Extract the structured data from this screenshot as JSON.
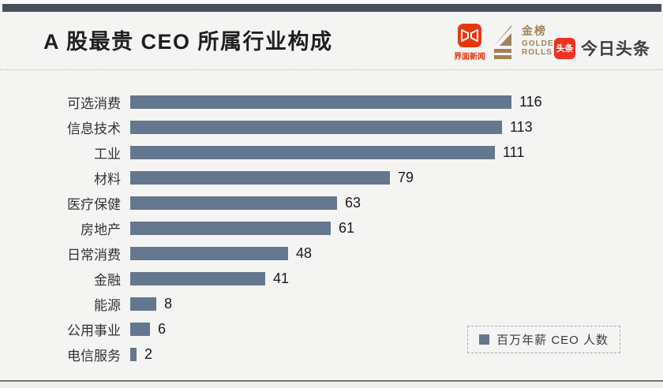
{
  "page": {
    "background": "#f4f4f3",
    "top_bar_color": "#47505a",
    "bottom_line_color": "#7c7467"
  },
  "header": {
    "title": "A 股最贵 CEO 所属行业构成",
    "logos": {
      "jiemian": {
        "name": "界面新闻",
        "label": "界面新闻",
        "brand_color": "#e8370f"
      },
      "golden_rolls": {
        "name": "金榜 GOLDEN ROLLS",
        "cn": "金榜",
        "en_line1": "GOLDEN",
        "en_line2": "ROLLS",
        "brand_color": "#a28257"
      },
      "toutiao": {
        "name": "今日头条",
        "badge": "头条",
        "label": "今日头条",
        "brand_color": "#ed3224"
      }
    }
  },
  "chart_data": {
    "type": "bar",
    "orientation": "horizontal",
    "title": "A 股最贵 CEO 所属行业构成",
    "categories": [
      "可选消费",
      "信息技术",
      "工业",
      "材料",
      "医疗保健",
      "房地产",
      "日常消费",
      "金融",
      "能源",
      "公用事业",
      "电信服务"
    ],
    "values": [
      116,
      113,
      111,
      79,
      63,
      61,
      48,
      41,
      8,
      6,
      2
    ],
    "series_name": "百万年薪 CEO 人数",
    "bar_color": "#65778e",
    "xlim": [
      0,
      116
    ],
    "grid": false,
    "legend_position": "bottom-right",
    "value_labels": true
  },
  "legend": {
    "label": "百万年薪 CEO 人数",
    "swatch_color": "#65778e"
  }
}
